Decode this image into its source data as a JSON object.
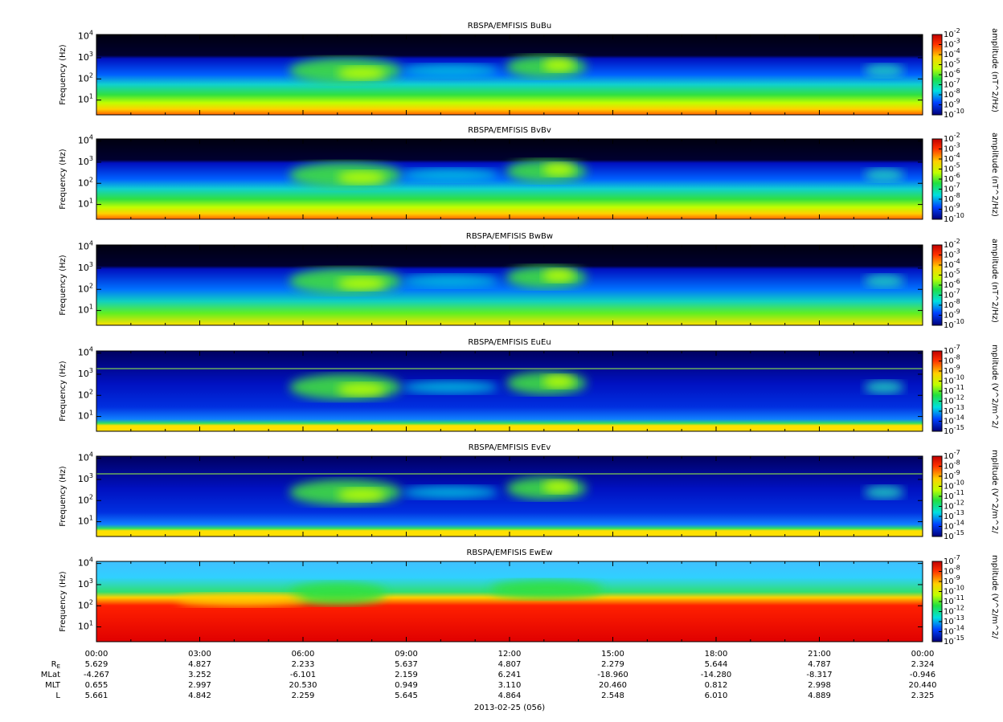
{
  "panels": [
    {
      "title": "RBSPA/EMFISIS  BuBu",
      "ylabel": "Frequency (Hz)",
      "yticks": [
        {
          "base": "10",
          "exp": "1"
        },
        {
          "base": "10",
          "exp": "2"
        },
        {
          "base": "10",
          "exp": "3"
        },
        {
          "base": "10",
          "exp": "4"
        }
      ],
      "colorbar_label": "amplitude (nT^2/Hz)",
      "colorbar_ticks": [
        {
          "base": "10",
          "exp": "-2"
        },
        {
          "base": "10",
          "exp": "-3"
        },
        {
          "base": "10",
          "exp": "-4"
        },
        {
          "base": "10",
          "exp": "-5"
        },
        {
          "base": "10",
          "exp": "-6"
        },
        {
          "base": "10",
          "exp": "-7"
        },
        {
          "base": "10",
          "exp": "-8"
        },
        {
          "base": "10",
          "exp": "-9"
        },
        {
          "base": "10",
          "exp": "-10"
        }
      ],
      "style": "b"
    },
    {
      "title": "RBSPA/EMFISIS  BvBv",
      "ylabel": "Frequency (Hz)",
      "yticks": [
        {
          "base": "10",
          "exp": "1"
        },
        {
          "base": "10",
          "exp": "2"
        },
        {
          "base": "10",
          "exp": "3"
        },
        {
          "base": "10",
          "exp": "4"
        }
      ],
      "colorbar_label": "amplitude (nT^2/Hz)",
      "colorbar_ticks": [
        {
          "base": "10",
          "exp": "-2"
        },
        {
          "base": "10",
          "exp": "-3"
        },
        {
          "base": "10",
          "exp": "-4"
        },
        {
          "base": "10",
          "exp": "-5"
        },
        {
          "base": "10",
          "exp": "-6"
        },
        {
          "base": "10",
          "exp": "-7"
        },
        {
          "base": "10",
          "exp": "-8"
        },
        {
          "base": "10",
          "exp": "-9"
        },
        {
          "base": "10",
          "exp": "-10"
        }
      ],
      "style": "b"
    },
    {
      "title": "RBSPA/EMFISIS  BwBw",
      "ylabel": "Frequency (Hz)",
      "yticks": [
        {
          "base": "10",
          "exp": "1"
        },
        {
          "base": "10",
          "exp": "2"
        },
        {
          "base": "10",
          "exp": "3"
        },
        {
          "base": "10",
          "exp": "4"
        }
      ],
      "colorbar_label": "amplitude (nT^2/Hz)",
      "colorbar_ticks": [
        {
          "base": "10",
          "exp": "-2"
        },
        {
          "base": "10",
          "exp": "-3"
        },
        {
          "base": "10",
          "exp": "-4"
        },
        {
          "base": "10",
          "exp": "-5"
        },
        {
          "base": "10",
          "exp": "-6"
        },
        {
          "base": "10",
          "exp": "-7"
        },
        {
          "base": "10",
          "exp": "-8"
        },
        {
          "base": "10",
          "exp": "-9"
        },
        {
          "base": "10",
          "exp": "-10"
        }
      ],
      "style": "bw"
    },
    {
      "title": "RBSPA/EMFISIS  EuEu",
      "ylabel": "Frequency (Hz)",
      "yticks": [
        {
          "base": "10",
          "exp": "1"
        },
        {
          "base": "10",
          "exp": "2"
        },
        {
          "base": "10",
          "exp": "3"
        },
        {
          "base": "10",
          "exp": "4"
        }
      ],
      "colorbar_label": "mplitude (V^2/m^2/",
      "colorbar_ticks": [
        {
          "base": "10",
          "exp": "-7"
        },
        {
          "base": "10",
          "exp": "-8"
        },
        {
          "base": "10",
          "exp": "-9"
        },
        {
          "base": "10",
          "exp": "-10"
        },
        {
          "base": "10",
          "exp": "-11"
        },
        {
          "base": "10",
          "exp": "-12"
        },
        {
          "base": "10",
          "exp": "-13"
        },
        {
          "base": "10",
          "exp": "-14"
        },
        {
          "base": "10",
          "exp": "-15"
        }
      ],
      "style": "e"
    },
    {
      "title": "RBSPA/EMFISIS  EvEv",
      "ylabel": "Frequency (Hz)",
      "yticks": [
        {
          "base": "10",
          "exp": "1"
        },
        {
          "base": "10",
          "exp": "2"
        },
        {
          "base": "10",
          "exp": "3"
        },
        {
          "base": "10",
          "exp": "4"
        }
      ],
      "colorbar_label": "mplitude (V^2/m^2/",
      "colorbar_ticks": [
        {
          "base": "10",
          "exp": "-7"
        },
        {
          "base": "10",
          "exp": "-8"
        },
        {
          "base": "10",
          "exp": "-9"
        },
        {
          "base": "10",
          "exp": "-10"
        },
        {
          "base": "10",
          "exp": "-11"
        },
        {
          "base": "10",
          "exp": "-12"
        },
        {
          "base": "10",
          "exp": "-13"
        },
        {
          "base": "10",
          "exp": "-14"
        },
        {
          "base": "10",
          "exp": "-15"
        }
      ],
      "style": "e"
    },
    {
      "title": "RBSPA/EMFISIS  EwEw",
      "ylabel": "Frequency (Hz)",
      "yticks": [
        {
          "base": "10",
          "exp": "1"
        },
        {
          "base": "10",
          "exp": "2"
        },
        {
          "base": "10",
          "exp": "3"
        },
        {
          "base": "10",
          "exp": "4"
        }
      ],
      "colorbar_label": "mplitude (V^2/m^2/",
      "colorbar_ticks": [
        {
          "base": "10",
          "exp": "-7"
        },
        {
          "base": "10",
          "exp": "-8"
        },
        {
          "base": "10",
          "exp": "-9"
        },
        {
          "base": "10",
          "exp": "-10"
        },
        {
          "base": "10",
          "exp": "-11"
        },
        {
          "base": "10",
          "exp": "-12"
        },
        {
          "base": "10",
          "exp": "-13"
        },
        {
          "base": "10",
          "exp": "-14"
        },
        {
          "base": "10",
          "exp": "-15"
        }
      ],
      "style": "w"
    }
  ],
  "xaxis": {
    "ticks": [
      "00:00",
      "03:00",
      "06:00",
      "09:00",
      "12:00",
      "15:00",
      "18:00",
      "21:00",
      "00:00"
    ]
  },
  "ephemeris": {
    "rows": [
      {
        "label": "R",
        "sub": "E",
        "values": [
          "5.629",
          "4.827",
          "2.233",
          "5.637",
          "4.807",
          "2.279",
          "5.644",
          "4.787",
          "2.324"
        ]
      },
      {
        "label": "MLat",
        "values": [
          "-4.267",
          "3.252",
          "-6.101",
          "2.159",
          "6.241",
          "-18.960",
          "-14.280",
          "-8.317",
          "-0.946"
        ]
      },
      {
        "label": "MLT",
        "values": [
          "0.655",
          "2.997",
          "20.530",
          "0.949",
          "3.110",
          "20.460",
          "0.812",
          "2.998",
          "20.440"
        ]
      },
      {
        "label": "L",
        "values": [
          "5.661",
          "4.842",
          "2.259",
          "5.645",
          "4.864",
          "2.548",
          "6.010",
          "4.889",
          "2.325"
        ]
      }
    ]
  },
  "date": "2013-02-25 (056)"
}
